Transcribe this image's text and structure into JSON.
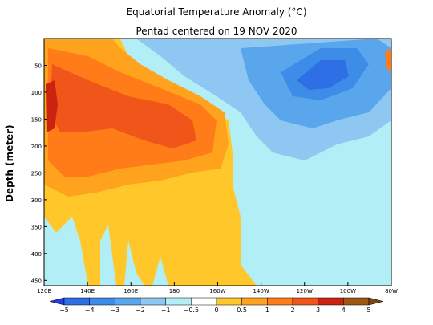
{
  "chart_data": {
    "type": "heatmap",
    "title": "Equatorial Temperature Anomaly (°C)",
    "subtitle": "Pentad centered on 19 NOV 2020",
    "xlabel": "",
    "ylabel": "Depth (meter)",
    "x_ticks": [
      "120E",
      "140E",
      "160E",
      "180",
      "160W",
      "140W",
      "120W",
      "100W",
      "80W"
    ],
    "y_ticks": [
      "50",
      "100",
      "150",
      "200",
      "250",
      "300",
      "350",
      "400",
      "450"
    ],
    "ylim": [
      0,
      460
    ],
    "colorbar": {
      "boundaries": [
        -5,
        -4,
        -3,
        -2,
        -1,
        -0.5,
        0,
        0.5,
        1,
        2,
        3,
        4,
        5
      ],
      "labels": [
        "−5",
        "−4",
        "−3",
        "−2",
        "−1",
        "−0.5",
        "0",
        "0.5",
        "1",
        "2",
        "3",
        "4",
        "5"
      ],
      "colors": [
        "#1e3ee0",
        "#2f6fe6",
        "#3d8de8",
        "#5aa6ec",
        "#8ec8f2",
        "#b2eef5",
        "#ffffff",
        "#ffc72a",
        "#ffa21e",
        "#ff7c18",
        "#f0561a",
        "#cc2210",
        "#9e5810",
        "#7a4612"
      ]
    }
  }
}
